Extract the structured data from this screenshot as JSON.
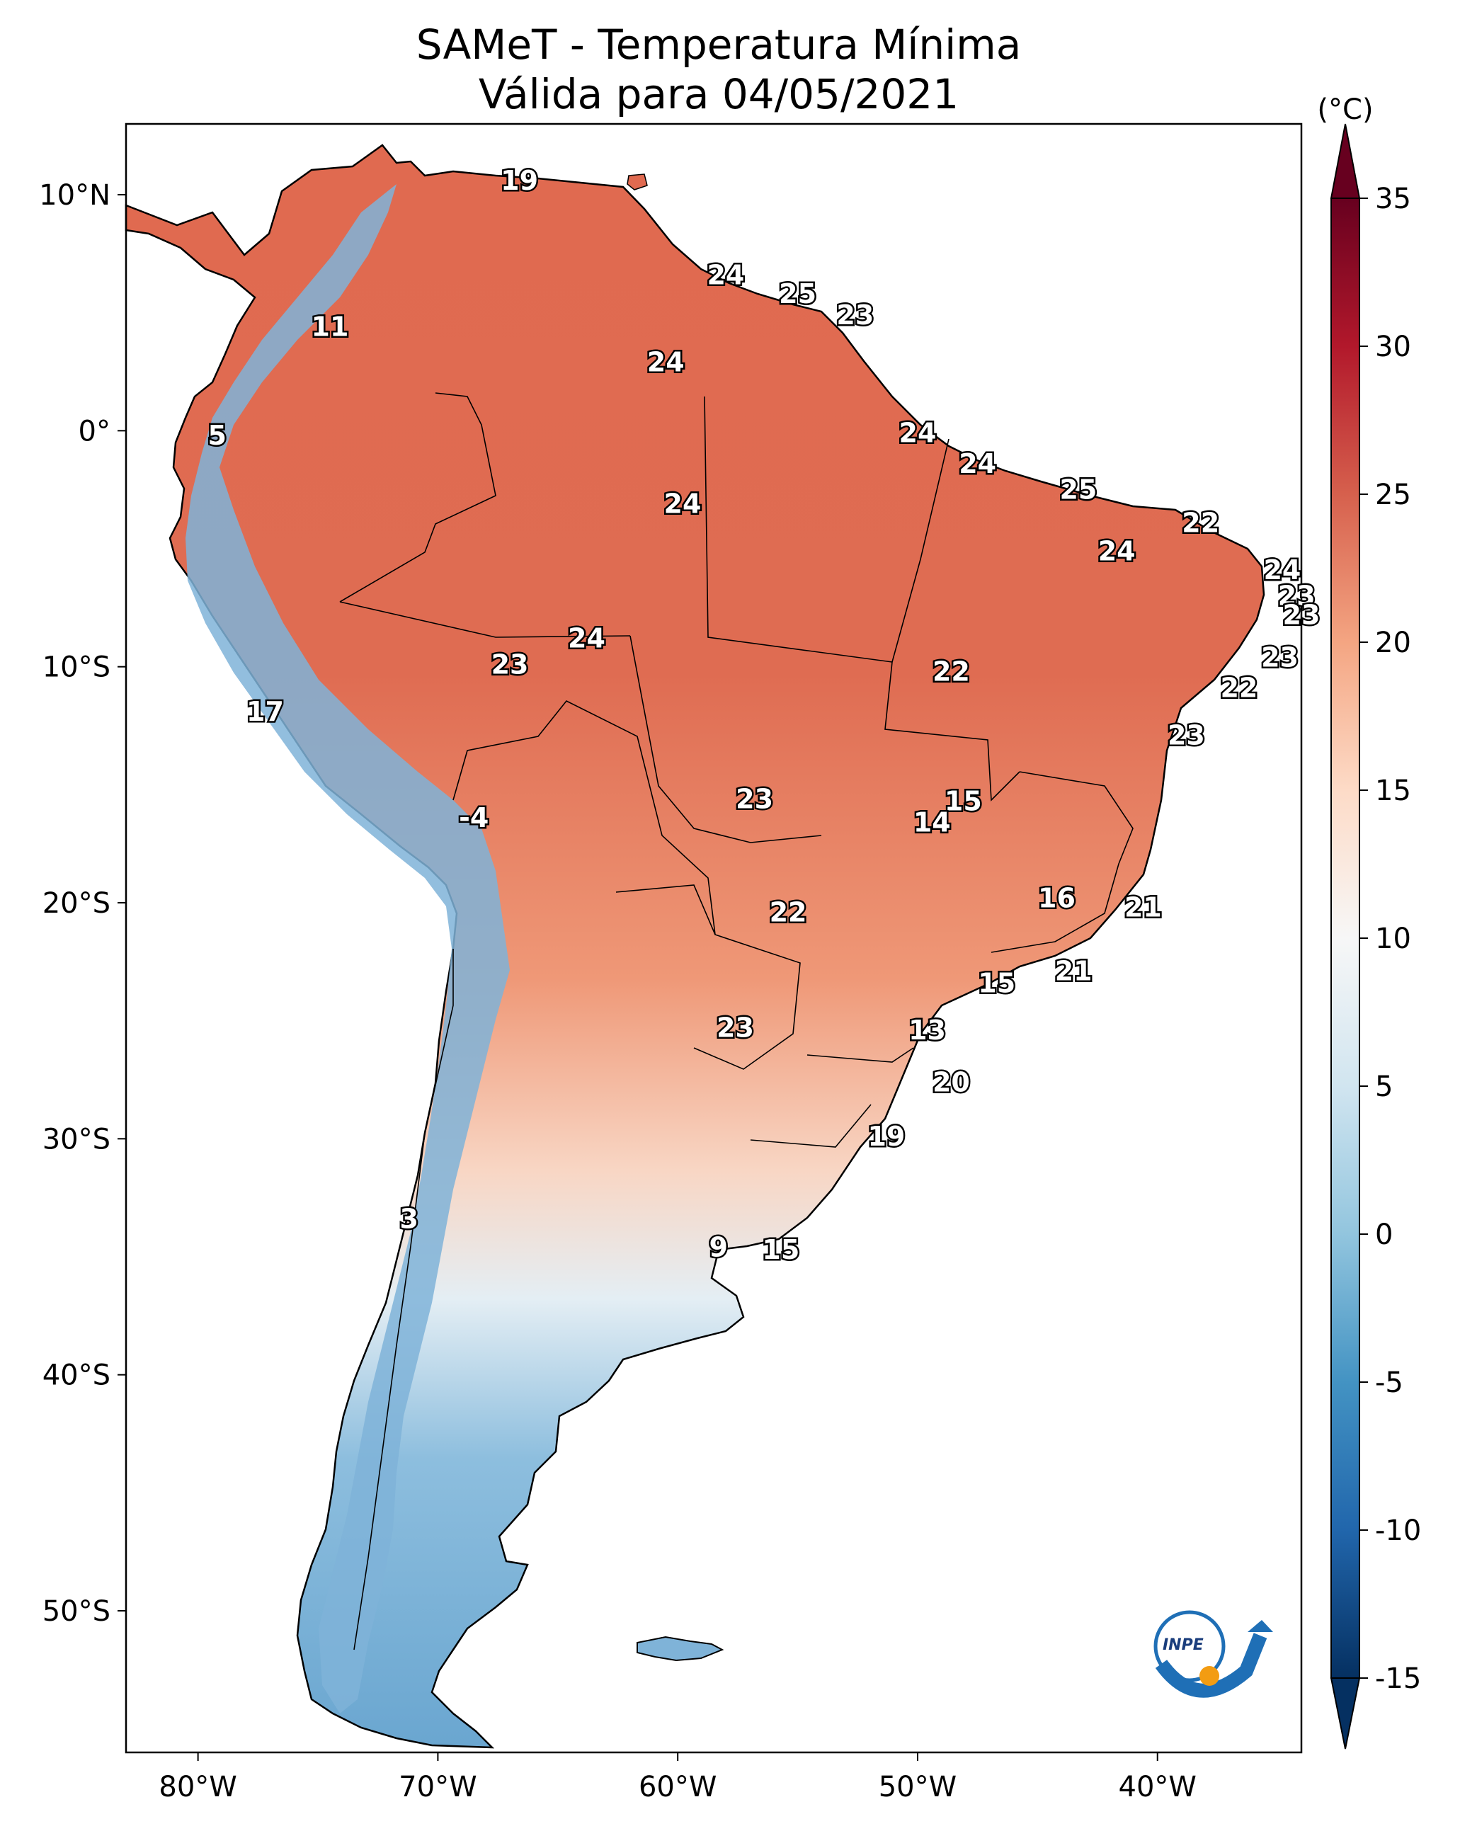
{
  "title": {
    "line1": "SAMeT - Temperatura Mínima",
    "line2": "Válida para 04/05/2021"
  },
  "map": {
    "lon_ticks": [
      "80°W",
      "70°W",
      "60°W",
      "50°W",
      "40°W"
    ],
    "lat_ticks": [
      "10°N",
      "0°",
      "10°S",
      "20°S",
      "30°S",
      "40°S",
      "50°S"
    ],
    "labels": [
      {
        "value": "19",
        "lon": -66.6,
        "lat": 10.6
      },
      {
        "value": "11",
        "lon": -74.5,
        "lat": 4.4
      },
      {
        "value": "5",
        "lon": -79.2,
        "lat": -0.2
      },
      {
        "value": "24",
        "lon": -58.0,
        "lat": 6.6
      },
      {
        "value": "25",
        "lon": -55.0,
        "lat": 5.8
      },
      {
        "value": "23",
        "lon": -52.6,
        "lat": 4.9
      },
      {
        "value": "24",
        "lon": -60.5,
        "lat": 2.9
      },
      {
        "value": "24",
        "lon": -50.0,
        "lat": -0.1
      },
      {
        "value": "24",
        "lon": -47.5,
        "lat": -1.4
      },
      {
        "value": "25",
        "lon": -43.3,
        "lat": -2.5
      },
      {
        "value": "24",
        "lon": -59.8,
        "lat": -3.1
      },
      {
        "value": "22",
        "lon": -38.2,
        "lat": -3.9
      },
      {
        "value": "24",
        "lon": -41.7,
        "lat": -5.1
      },
      {
        "value": "24",
        "lon": -34.8,
        "lat": -5.9
      },
      {
        "value": "23",
        "lon": -34.2,
        "lat": -7.0
      },
      {
        "value": "23",
        "lon": -34.0,
        "lat": -7.8
      },
      {
        "value": "24",
        "lon": -63.8,
        "lat": -8.8
      },
      {
        "value": "23",
        "lon": -67.0,
        "lat": -9.9
      },
      {
        "value": "22",
        "lon": -48.6,
        "lat": -10.2
      },
      {
        "value": "23",
        "lon": -34.9,
        "lat": -9.6
      },
      {
        "value": "22",
        "lon": -36.6,
        "lat": -10.9
      },
      {
        "value": "17",
        "lon": -77.2,
        "lat": -11.9
      },
      {
        "value": "23",
        "lon": -38.8,
        "lat": -12.9
      },
      {
        "value": "23",
        "lon": -56.8,
        "lat": -15.6
      },
      {
        "value": "15",
        "lon": -48.1,
        "lat": -15.7
      },
      {
        "value": "14",
        "lon": -49.4,
        "lat": -16.6
      },
      {
        "value": "-4",
        "lon": -68.5,
        "lat": -16.4
      },
      {
        "value": "16",
        "lon": -44.2,
        "lat": -19.8
      },
      {
        "value": "21",
        "lon": -40.6,
        "lat": -20.2
      },
      {
        "value": "22",
        "lon": -55.4,
        "lat": -20.4
      },
      {
        "value": "21",
        "lon": -43.5,
        "lat": -22.9
      },
      {
        "value": "15",
        "lon": -46.7,
        "lat": -23.4
      },
      {
        "value": "23",
        "lon": -57.6,
        "lat": -25.3
      },
      {
        "value": "13",
        "lon": -49.6,
        "lat": -25.4
      },
      {
        "value": "20",
        "lon": -48.6,
        "lat": -27.6
      },
      {
        "value": "19",
        "lon": -51.3,
        "lat": -29.9
      },
      {
        "value": "3",
        "lon": -71.2,
        "lat": -33.4
      },
      {
        "value": "9",
        "lon": -58.3,
        "lat": -34.6
      },
      {
        "value": "15",
        "lon": -55.7,
        "lat": -34.7
      }
    ],
    "logo_text": "INPE"
  },
  "colorbar": {
    "unit_label": "(°C)",
    "min": -15,
    "max": 35,
    "ticks": [
      "35",
      "30",
      "25",
      "20",
      "15",
      "10",
      "5",
      "0",
      "-5",
      "-10",
      "-15"
    ],
    "colors": [
      "#053061",
      "#2166ac",
      "#4393c3",
      "#92c5de",
      "#d1e5f0",
      "#f7f7f7",
      "#fddbc7",
      "#f4a582",
      "#d6604d",
      "#b2182b",
      "#67001f"
    ]
  }
}
